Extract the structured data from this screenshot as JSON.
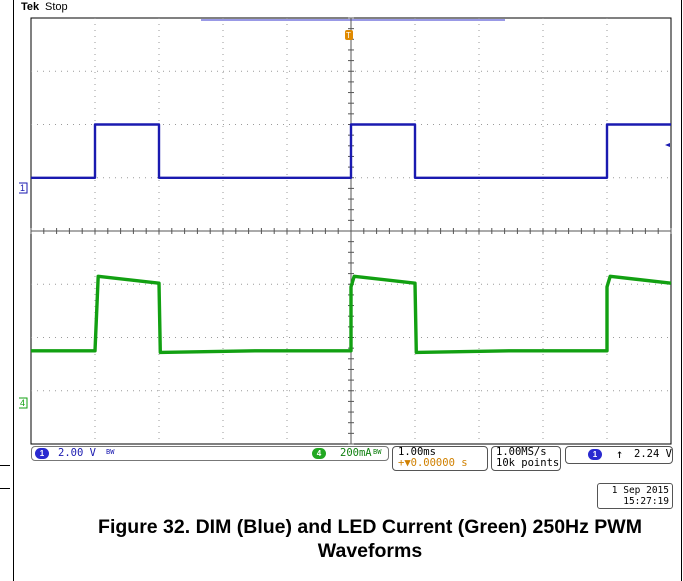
{
  "header": {
    "brand": "Tek",
    "run_state": "Stop"
  },
  "markers": {
    "ch1": "1",
    "ch4": "4",
    "trigger": "T"
  },
  "status": {
    "ch1_scale": "2.00 V",
    "ch4_scale": "200mA",
    "bandwidth_mark": "BW",
    "timebase": "1.00ms",
    "delay": "+▼0.00000 s",
    "sample_rate": "1.00MS/s",
    "record_length": "10k points",
    "trigger_source": "1",
    "trigger_slope": "↑",
    "trigger_level": "2.24 V",
    "date": "1 Sep 2015",
    "time": "15:27:19"
  },
  "caption": "Figure 32. DIM (Blue) and LED Current (Green) 250Hz PWM Waveforms",
  "colors": {
    "ch1": "#1a1ab0",
    "ch4": "#12a012",
    "grid": "#9a9a9a",
    "trigger": "#e08a00"
  },
  "chart_data": {
    "type": "line",
    "title": "",
    "grid": true,
    "x_divisions": 10,
    "y_divisions": 8,
    "x_unit": "ms",
    "ms_per_div": 1.0,
    "x_range_ms": [
      -5,
      5
    ],
    "y_range_div": [
      -4,
      4
    ],
    "series": [
      {
        "name": "DIM (Blue)",
        "color": "#1a1ab0",
        "volts_per_div": 2.0,
        "low_level_div": 1.0,
        "high_level_div": 2.0,
        "x_ms": [
          -5.0,
          -4.0,
          -4.0,
          -3.0,
          -3.0,
          0.0,
          0.0,
          1.0,
          1.0,
          4.0,
          4.0,
          5.0
        ],
        "y_div": [
          1.0,
          1.0,
          2.0,
          2.0,
          1.0,
          1.0,
          2.0,
          2.0,
          1.0,
          1.0,
          2.0,
          2.0
        ]
      },
      {
        "name": "LED Current (Green)",
        "color": "#12a012",
        "amps_per_div": 0.2,
        "x_ms": [
          -5.0,
          -4.0,
          -3.95,
          -3.0,
          -2.98,
          -1.5,
          0.0,
          0.0,
          0.05,
          1.0,
          1.02,
          2.5,
          4.0,
          4.0,
          4.05,
          5.0
        ],
        "y_div": [
          -2.25,
          -2.25,
          -0.85,
          -0.98,
          -2.28,
          -2.25,
          -2.25,
          -1.05,
          -0.85,
          -0.98,
          -2.28,
          -2.25,
          -2.25,
          -1.05,
          -0.85,
          -0.98
        ]
      }
    ]
  }
}
